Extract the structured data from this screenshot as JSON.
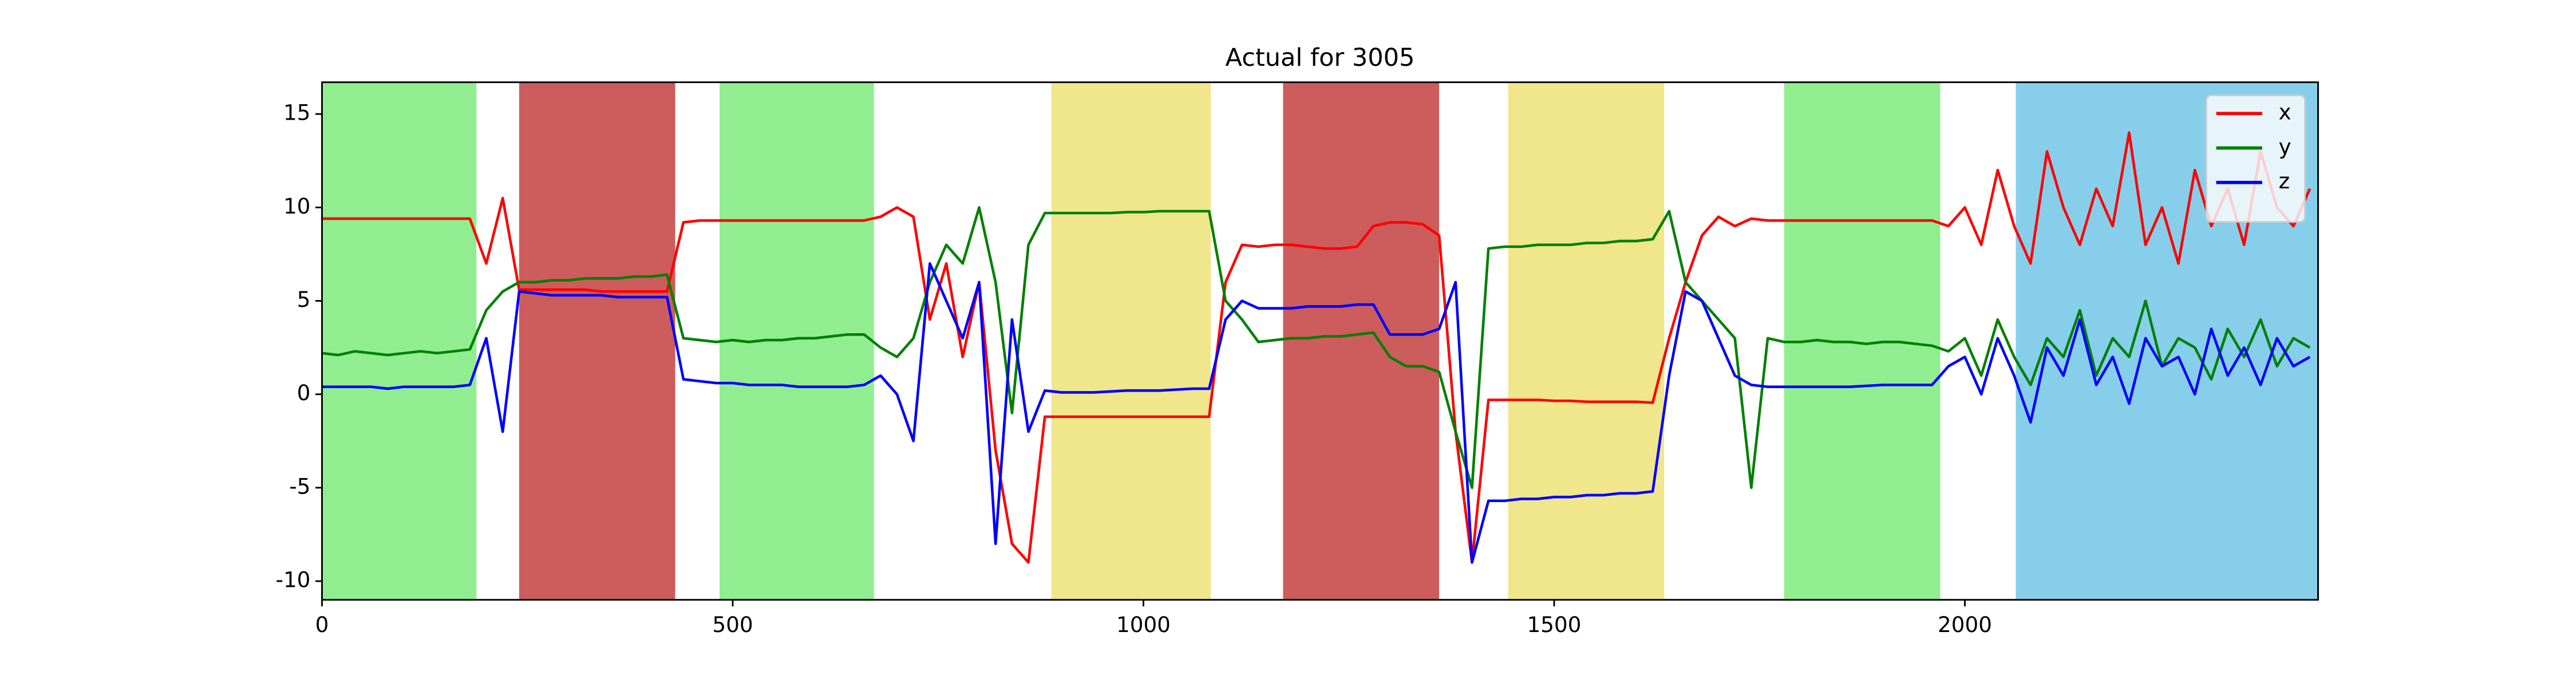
{
  "chart_data": {
    "type": "line",
    "title": "Actual for 3005",
    "x": [
      0,
      20,
      40,
      60,
      80,
      100,
      120,
      140,
      160,
      180,
      200,
      220,
      240,
      260,
      280,
      300,
      320,
      340,
      360,
      380,
      400,
      420,
      440,
      460,
      480,
      500,
      520,
      540,
      560,
      580,
      600,
      620,
      640,
      660,
      680,
      700,
      720,
      740,
      760,
      780,
      800,
      820,
      840,
      860,
      880,
      900,
      920,
      940,
      960,
      980,
      1000,
      1020,
      1040,
      1060,
      1080,
      1100,
      1120,
      1140,
      1160,
      1180,
      1200,
      1220,
      1240,
      1260,
      1280,
      1300,
      1320,
      1340,
      1360,
      1380,
      1400,
      1420,
      1440,
      1460,
      1480,
      1500,
      1520,
      1540,
      1560,
      1580,
      1600,
      1620,
      1640,
      1660,
      1680,
      1700,
      1720,
      1740,
      1760,
      1780,
      1800,
      1820,
      1840,
      1860,
      1880,
      1900,
      1920,
      1940,
      1960,
      1980,
      2000,
      2020,
      2040,
      2060,
      2080,
      2100,
      2120,
      2140,
      2160,
      2180,
      2200,
      2220,
      2240,
      2260,
      2280,
      2300,
      2320,
      2340,
      2360,
      2380,
      2400,
      2420
    ],
    "series": [
      {
        "name": "x",
        "color": "#ff0000",
        "values": [
          9.4,
          9.4,
          9.4,
          9.4,
          9.4,
          9.4,
          9.4,
          9.4,
          9.4,
          9.4,
          7,
          10.5,
          5.6,
          5.6,
          5.6,
          5.6,
          5.6,
          5.5,
          5.5,
          5.5,
          5.5,
          5.5,
          9.2,
          9.3,
          9.3,
          9.3,
          9.3,
          9.3,
          9.3,
          9.3,
          9.3,
          9.3,
          9.3,
          9.3,
          9.5,
          10,
          9.5,
          4,
          7,
          2,
          6,
          -3,
          -8,
          -9,
          -1.2,
          -1.2,
          -1.2,
          -1.2,
          -1.2,
          -1.2,
          -1.2,
          -1.2,
          -1.2,
          -1.2,
          -1.2,
          6,
          8,
          7.9,
          8,
          8,
          7.9,
          7.8,
          7.8,
          7.9,
          9,
          9.2,
          9.2,
          9.1,
          8.5,
          -2,
          -9,
          -0.3,
          -0.3,
          -0.3,
          -0.3,
          -0.35,
          -0.35,
          -0.4,
          -0.4,
          -0.4,
          -0.4,
          -0.45,
          3,
          6,
          8.5,
          9.5,
          9,
          9.4,
          9.3,
          9.3,
          9.3,
          9.3,
          9.3,
          9.3,
          9.3,
          9.3,
          9.3,
          9.3,
          9.3,
          9,
          10,
          8,
          12,
          9,
          7,
          13,
          10,
          8,
          11,
          9,
          14,
          8,
          10,
          7,
          12,
          9,
          11,
          8,
          13,
          10,
          9,
          11
        ]
      },
      {
        "name": "y",
        "color": "#008000",
        "values": [
          2.2,
          2.1,
          2.3,
          2.2,
          2.1,
          2.2,
          2.3,
          2.2,
          2.3,
          2.4,
          4.5,
          5.5,
          6.0,
          6.0,
          6.1,
          6.1,
          6.2,
          6.2,
          6.2,
          6.3,
          6.3,
          6.4,
          3.0,
          2.9,
          2.8,
          2.9,
          2.8,
          2.9,
          2.9,
          3.0,
          3.0,
          3.1,
          3.2,
          3.2,
          2.5,
          2.0,
          3.0,
          6,
          8,
          7,
          10,
          6,
          -1,
          8,
          9.7,
          9.7,
          9.7,
          9.7,
          9.7,
          9.75,
          9.75,
          9.8,
          9.8,
          9.8,
          9.8,
          5,
          4,
          2.8,
          2.9,
          3.0,
          3.0,
          3.1,
          3.1,
          3.2,
          3.3,
          2,
          1.5,
          1.5,
          1.2,
          -2,
          -5,
          7.8,
          7.9,
          7.9,
          8.0,
          8.0,
          8.0,
          8.1,
          8.1,
          8.2,
          8.2,
          8.3,
          9.8,
          6,
          5,
          4,
          3,
          -5,
          3,
          2.8,
          2.8,
          2.9,
          2.8,
          2.8,
          2.7,
          2.8,
          2.8,
          2.7,
          2.6,
          2.3,
          3,
          1,
          4,
          2,
          0.5,
          3,
          2,
          4.5,
          1,
          3,
          2,
          5,
          1.5,
          3,
          2.5,
          0.8,
          3.5,
          2,
          4,
          1.5,
          3,
          2.5
        ]
      },
      {
        "name": "z",
        "color": "#0000ff",
        "values": [
          0.4,
          0.4,
          0.4,
          0.4,
          0.3,
          0.4,
          0.4,
          0.4,
          0.4,
          0.5,
          3,
          -2,
          5.5,
          5.4,
          5.3,
          5.3,
          5.3,
          5.3,
          5.2,
          5.2,
          5.2,
          5.2,
          0.8,
          0.7,
          0.6,
          0.6,
          0.5,
          0.5,
          0.5,
          0.4,
          0.4,
          0.4,
          0.4,
          0.5,
          1,
          0,
          -2.5,
          7,
          5,
          3,
          6,
          -8,
          4,
          -2,
          0.2,
          0.1,
          0.1,
          0.1,
          0.15,
          0.2,
          0.2,
          0.2,
          0.25,
          0.3,
          0.3,
          4,
          5,
          4.6,
          4.6,
          4.6,
          4.7,
          4.7,
          4.7,
          4.8,
          4.8,
          3.2,
          3.2,
          3.2,
          3.5,
          6,
          -9,
          -5.7,
          -5.7,
          -5.6,
          -5.6,
          -5.5,
          -5.5,
          -5.4,
          -5.4,
          -5.3,
          -5.3,
          -5.2,
          1,
          5.5,
          5,
          3,
          1,
          0.5,
          0.4,
          0.4,
          0.4,
          0.4,
          0.4,
          0.4,
          0.45,
          0.5,
          0.5,
          0.5,
          0.5,
          1.5,
          2,
          0,
          3,
          1,
          -1.5,
          2.5,
          1,
          4,
          0.5,
          2,
          -0.5,
          3,
          1.5,
          2,
          0,
          3.5,
          1,
          2.5,
          0.5,
          3,
          1.5,
          2
        ]
      }
    ],
    "spans": [
      {
        "start": 0,
        "end": 188,
        "color": "#90ee90"
      },
      {
        "start": 240,
        "end": 430,
        "color": "#cd5c5c"
      },
      {
        "start": 484,
        "end": 672,
        "color": "#90ee90"
      },
      {
        "start": 888,
        "end": 1082,
        "color": "#f0e68c"
      },
      {
        "start": 1170,
        "end": 1360,
        "color": "#cd5c5c"
      },
      {
        "start": 1444,
        "end": 1634,
        "color": "#f0e68c"
      },
      {
        "start": 1780,
        "end": 1970,
        "color": "#90ee90"
      },
      {
        "start": 2062,
        "end": 2430,
        "color": "#87ceeb"
      }
    ],
    "xlim": [
      0,
      2430
    ],
    "xticks": [
      0,
      500,
      1000,
      1500,
      2000
    ],
    "ylim": [
      -11,
      16.7
    ],
    "yticks": [
      -10,
      -5,
      0,
      5,
      10,
      15
    ],
    "legend": "upper right"
  }
}
